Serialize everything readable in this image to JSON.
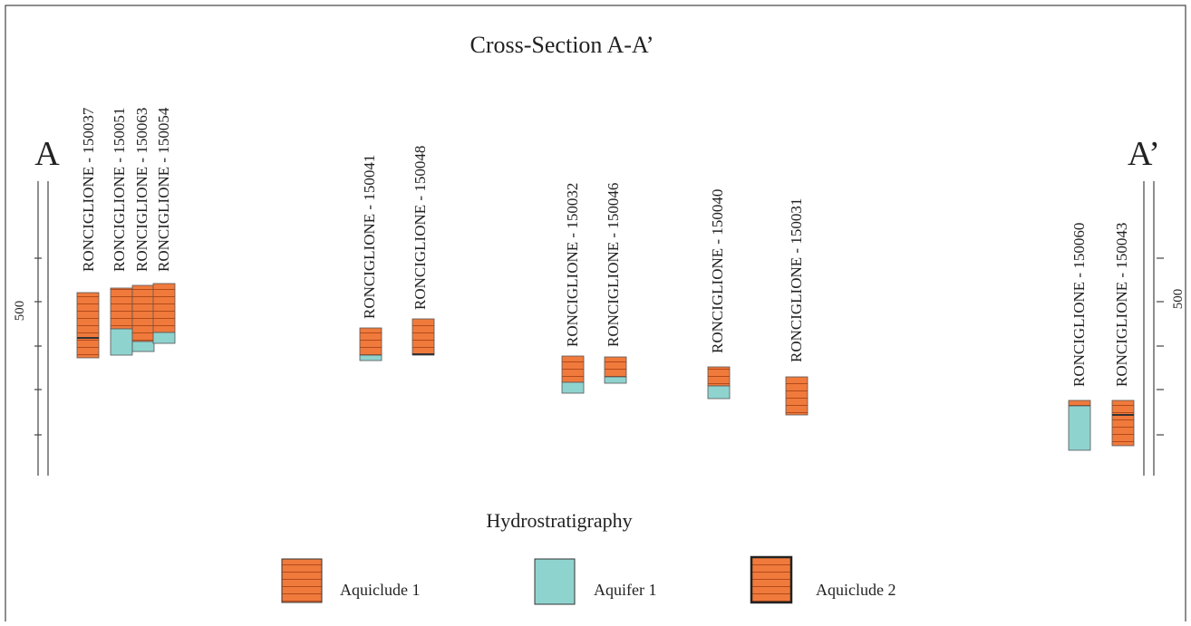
{
  "title": "Cross-Section A-A’",
  "end_labels": {
    "left": "A",
    "right": "A’"
  },
  "scale": {
    "left_label": "500",
    "right_label": "500"
  },
  "wells": [
    {
      "label": "RONCIGLIONE - 150037"
    },
    {
      "label": "RONCIGLIONE - 150051"
    },
    {
      "label": "RONCIGLIONE - 150063"
    },
    {
      "label": "RONCIGLIONE - 150054"
    },
    {
      "label": "RONCIGLIONE - 150041"
    },
    {
      "label": "RONCIGLIONE - 150048"
    },
    {
      "label": "RONCIGLIONE - 150032"
    },
    {
      "label": "RONCIGLIONE - 150046"
    },
    {
      "label": "RONCIGLIONE - 150040"
    },
    {
      "label": "RONCIGLIONE - 150031"
    },
    {
      "label": "RONCIGLIONE - 150060"
    },
    {
      "label": "RONCIGLIONE - 150043"
    }
  ],
  "legend": {
    "title": "Hydrostratigraphy",
    "items": [
      {
        "label": "Aquiclude 1"
      },
      {
        "label": "Aquifer 1"
      },
      {
        "label": "Aquiclude 2"
      }
    ]
  }
}
